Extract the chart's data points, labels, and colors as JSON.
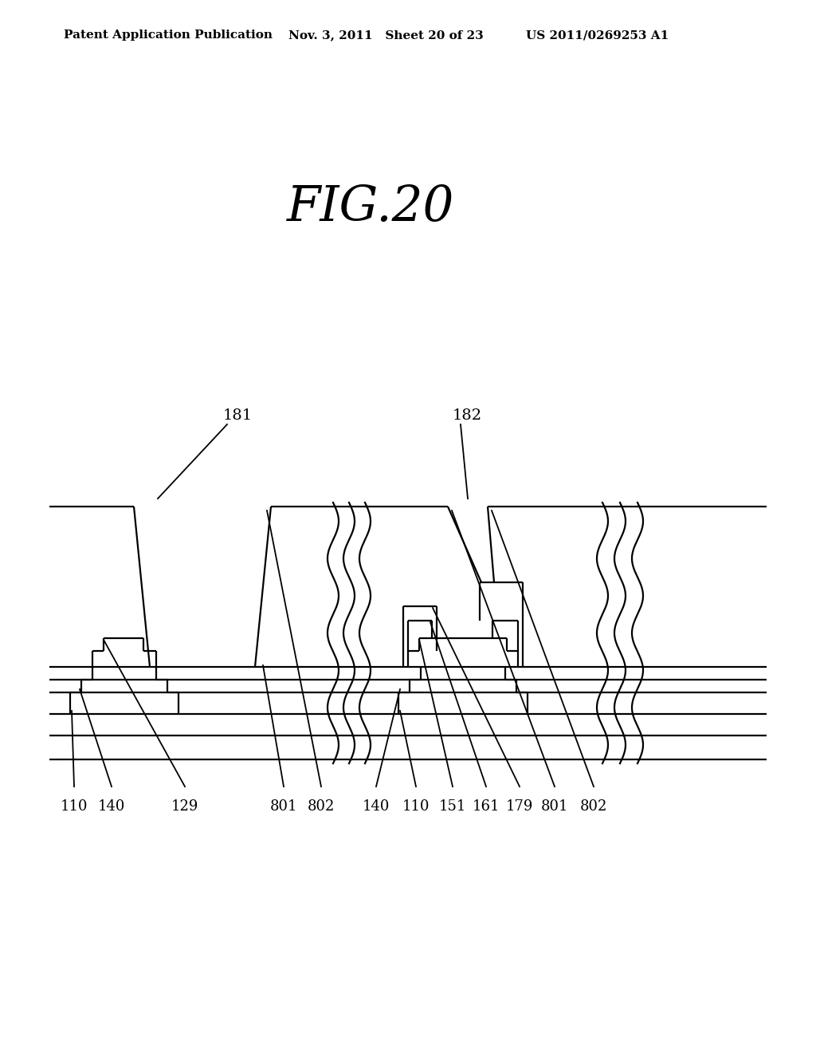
{
  "background_color": "#ffffff",
  "title": "FIG.20",
  "header_left": "Patent Application Publication",
  "header_center": "Nov. 3, 2011   Sheet 20 of 23",
  "header_right": "US 2011/0269253 A1",
  "fig_label": "FIG.20"
}
